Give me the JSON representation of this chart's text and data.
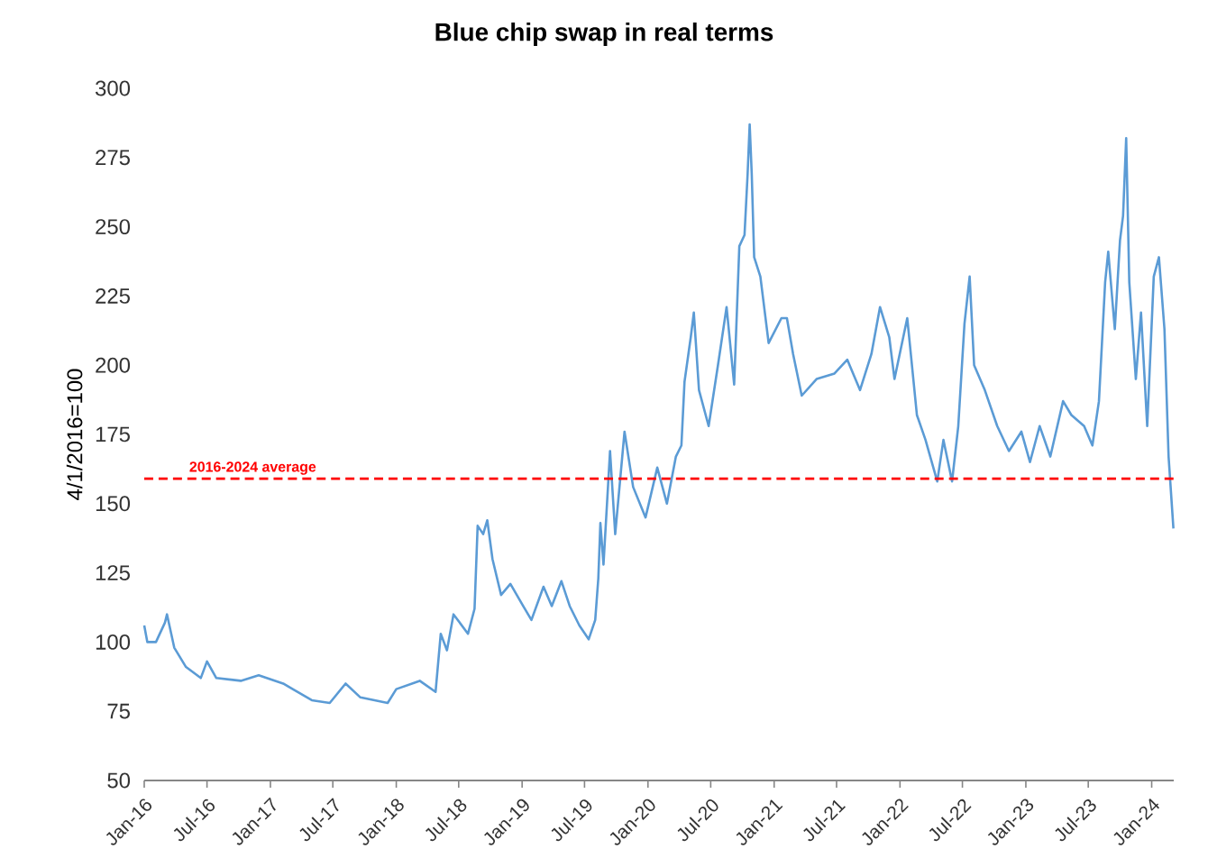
{
  "chart_data": {
    "type": "line",
    "title": "Blue chip swap in real terms",
    "ylabel": "4/1/2016=100",
    "x": [
      "2016-01-01",
      "2016-01-10",
      "2016-02-04",
      "2016-03-01",
      "2016-03-07",
      "2016-03-28",
      "2016-05-01",
      "2016-06-13",
      "2016-07-01",
      "2016-07-28",
      "2016-10-07",
      "2016-11-28",
      "2017-02-07",
      "2017-05-01",
      "2017-06-22",
      "2017-08-07",
      "2017-09-19",
      "2017-12-07",
      "2018-01-01",
      "2018-03-10",
      "2018-04-25",
      "2018-05-10",
      "2018-05-28",
      "2018-06-16",
      "2018-07-28",
      "2018-08-16",
      "2018-08-25",
      "2018-09-10",
      "2018-09-22",
      "2018-10-07",
      "2018-11-01",
      "2018-11-28",
      "2019-01-04",
      "2019-01-28",
      "2019-03-04",
      "2019-03-28",
      "2019-04-25",
      "2019-05-19",
      "2019-06-16",
      "2019-07-13",
      "2019-08-01",
      "2019-08-10",
      "2019-08-16",
      "2019-08-25",
      "2019-09-13",
      "2019-09-28",
      "2019-10-25",
      "2019-11-19",
      "2019-12-25",
      "2020-01-28",
      "2020-02-25",
      "2020-03-22",
      "2020-04-07",
      "2020-04-16",
      "2020-05-04",
      "2020-05-13",
      "2020-05-28",
      "2020-06-25",
      "2020-07-22",
      "2020-08-16",
      "2020-09-07",
      "2020-09-22",
      "2020-10-07",
      "2020-10-16",
      "2020-10-22",
      "2020-10-28",
      "2020-11-04",
      "2020-11-22",
      "2020-12-16",
      "2021-01-22",
      "2021-02-07",
      "2021-02-25",
      "2021-03-22",
      "2021-05-04",
      "2021-06-25",
      "2021-08-01",
      "2021-09-07",
      "2021-10-10",
      "2021-11-04",
      "2021-12-01",
      "2021-12-16",
      "2022-01-22",
      "2022-02-19",
      "2022-03-16",
      "2022-04-19",
      "2022-05-07",
      "2022-06-01",
      "2022-06-19",
      "2022-07-07",
      "2022-07-22",
      "2022-08-04",
      "2022-09-04",
      "2022-10-10",
      "2022-11-13",
      "2022-12-19",
      "2023-01-13",
      "2023-02-10",
      "2023-03-13",
      "2023-04-19",
      "2023-05-13",
      "2023-06-19",
      "2023-07-13",
      "2023-08-01",
      "2023-08-19",
      "2023-08-28",
      "2023-09-16",
      "2023-10-01",
      "2023-10-10",
      "2023-10-19",
      "2023-10-28",
      "2023-11-16",
      "2023-12-01",
      "2023-12-19",
      "2024-01-07",
      "2024-01-22",
      "2024-02-07",
      "2024-02-19",
      "2024-03-04"
    ],
    "series": [
      {
        "color": "#5b9bd5",
        "values": [
          106,
          100,
          100,
          107,
          110,
          98,
          91,
          87,
          93,
          87,
          86,
          88,
          85,
          79,
          78,
          85,
          80,
          78,
          83,
          86,
          82,
          103,
          97,
          110,
          103,
          112,
          142,
          139,
          144,
          130,
          117,
          121,
          113,
          108,
          120,
          113,
          122,
          113,
          106,
          101,
          108,
          123,
          143,
          128,
          169,
          139,
          176,
          156,
          145,
          163,
          150,
          167,
          171,
          194,
          210,
          219,
          191,
          178,
          200,
          221,
          193,
          243,
          247,
          269,
          287,
          269,
          239,
          232,
          208,
          217,
          217,
          204,
          189,
          195,
          197,
          202,
          191,
          204,
          221,
          210,
          195,
          217,
          182,
          173,
          158,
          173,
          158,
          178,
          215,
          232,
          200,
          191,
          178,
          169,
          176,
          165,
          178,
          167,
          187,
          182,
          178,
          171,
          187,
          230,
          241,
          213,
          245,
          254,
          282,
          230,
          195,
          219,
          178,
          232,
          239,
          213,
          167,
          141
        ]
      }
    ],
    "xlim": [
      "2016-01-01",
      "2024-03-05"
    ],
    "xticks": [
      {
        "value": "2016-01-01",
        "label": "Jan-16"
      },
      {
        "value": "2016-07-01",
        "label": "Jul-16"
      },
      {
        "value": "2017-01-01",
        "label": "Jan-17"
      },
      {
        "value": "2017-07-01",
        "label": "Jul-17"
      },
      {
        "value": "2018-01-01",
        "label": "Jan-18"
      },
      {
        "value": "2018-07-01",
        "label": "Jul-18"
      },
      {
        "value": "2019-01-01",
        "label": "Jan-19"
      },
      {
        "value": "2019-07-01",
        "label": "Jul-19"
      },
      {
        "value": "2020-01-01",
        "label": "Jan-20"
      },
      {
        "value": "2020-07-01",
        "label": "Jul-20"
      },
      {
        "value": "2021-01-01",
        "label": "Jan-21"
      },
      {
        "value": "2021-07-01",
        "label": "Jul-21"
      },
      {
        "value": "2022-01-01",
        "label": "Jan-22"
      },
      {
        "value": "2022-07-01",
        "label": "Jul-22"
      },
      {
        "value": "2023-01-01",
        "label": "Jan-23"
      },
      {
        "value": "2023-07-01",
        "label": "Jul-23"
      },
      {
        "value": "2024-01-01",
        "label": "Jan-24"
      }
    ],
    "ylim": [
      50,
      300
    ],
    "yticks": [
      50,
      75,
      100,
      125,
      150,
      175,
      200,
      225,
      250,
      275,
      300
    ],
    "ref_lines": [
      {
        "axis": "y",
        "value": 159,
        "label": "2016-2024 average",
        "color": "#ff0000",
        "line_style": "dashed"
      }
    ],
    "grid": false,
    "legend": false,
    "marker": "none",
    "line_style": "solid"
  }
}
